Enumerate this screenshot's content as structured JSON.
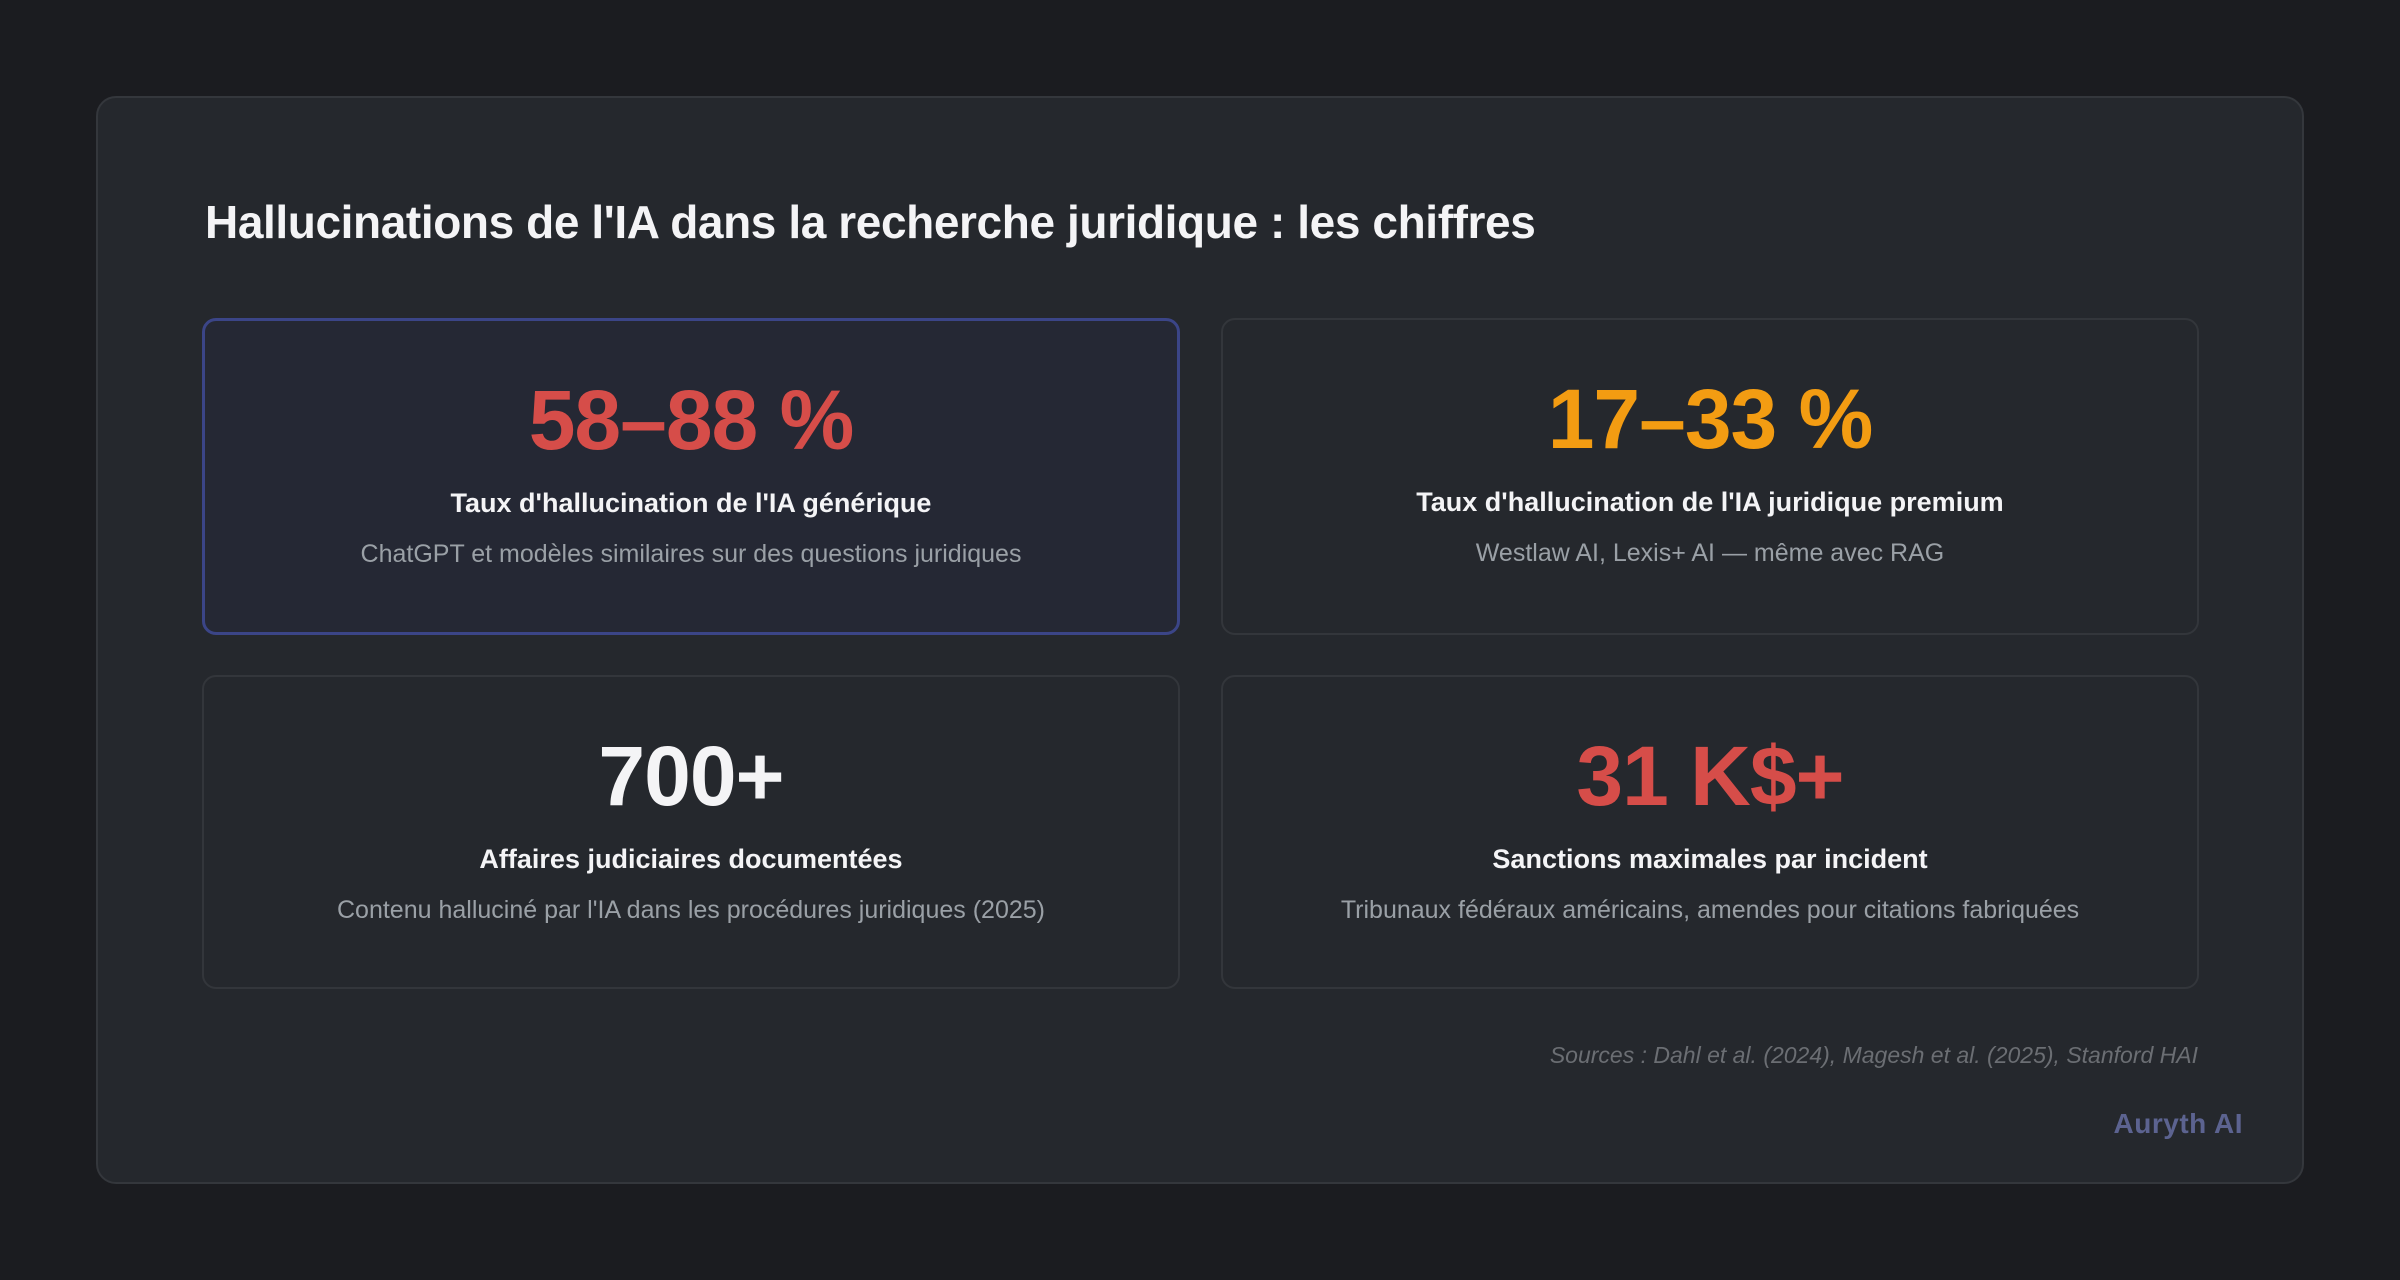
{
  "title": "Hallucinations de l'IA dans la recherche juridique : les chiffres",
  "colors": {
    "background": "#1b1c20",
    "panel": "#25282d",
    "panel_border": "#34373c",
    "highlight_border": "#3b4587",
    "red": "#d64d49",
    "orange": "#f39c12",
    "white": "#f4f4f6",
    "muted_text": "#9aa0a6",
    "source_text": "#6b6e73",
    "brand": "#5c6390"
  },
  "stats": [
    {
      "value": "58–88 %",
      "value_color": "#d64d49",
      "label": "Taux d'hallucination de l'IA générique",
      "description": "ChatGPT et modèles similaires sur des questions juridiques",
      "highlighted": true
    },
    {
      "value": "17–33 %",
      "value_color": "#f39c12",
      "label": "Taux d'hallucination de l'IA juridique premium",
      "description": "Westlaw AI, Lexis+ AI — même avec RAG",
      "highlighted": false
    },
    {
      "value": "700+",
      "value_color": "#f4f4f6",
      "label": "Affaires judiciaires documentées",
      "description": "Contenu halluciné par l'IA dans les procédures juridiques (2025)",
      "highlighted": false
    },
    {
      "value": "31 K$+",
      "value_color": "#d64d49",
      "label": "Sanctions maximales par incident",
      "description": "Tribunaux fédéraux américains, amendes pour citations fabriquées",
      "highlighted": false
    }
  ],
  "sources": "Sources : Dahl et al. (2024), Magesh et al. (2025), Stanford HAI",
  "brand": "Auryth AI"
}
